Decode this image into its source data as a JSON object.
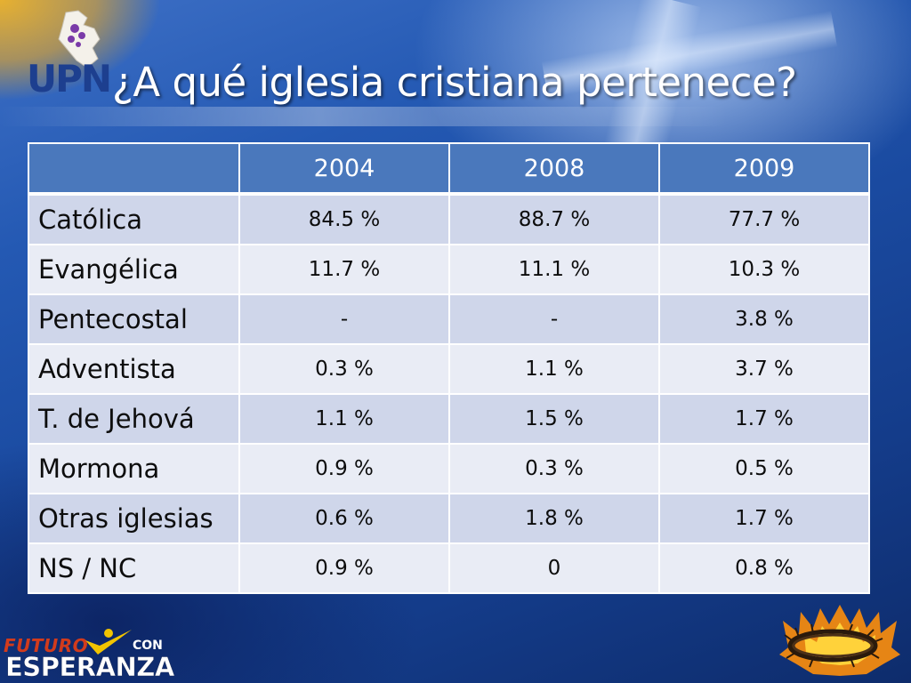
{
  "slide": {
    "title": "¿A qué iglesia cristiana pertenece?"
  },
  "logos": {
    "top_left": {
      "text": "UPN",
      "icon": "peru-map-icon"
    },
    "bottom_left": {
      "line1": "FUTURO",
      "line2": "CON",
      "line3": "ESPERANZA",
      "icon": "check-person-icon"
    },
    "bottom_right": {
      "icon": "crown-of-thorns-flames-icon"
    }
  },
  "table": {
    "corner": "",
    "columns": [
      "2004",
      "2008",
      "2009"
    ],
    "rows": [
      {
        "label": "Católica",
        "values": [
          "84.5 %",
          "88.7 %",
          "77.7 %"
        ]
      },
      {
        "label": "Evangélica",
        "values": [
          "11.7 %",
          "11.1 %",
          "10.3 %"
        ]
      },
      {
        "label": "Pentecostal",
        "values": [
          "-",
          "-",
          "3.8 %"
        ]
      },
      {
        "label": "Adventista",
        "values": [
          "0.3 %",
          "1.1 %",
          "3.7 %"
        ]
      },
      {
        "label": "T. de Jehová",
        "values": [
          "1.1 %",
          "1.5 %",
          "1.7 %"
        ]
      },
      {
        "label": "Mormona",
        "values": [
          "0.9 %",
          "0.3 %",
          "0.5 %"
        ]
      },
      {
        "label": "Otras iglesias",
        "values": [
          "0.6 %",
          "1.8 %",
          "1.7 %"
        ]
      },
      {
        "label": "NS / NC",
        "values": [
          "0.9 %",
          "0",
          "0.8 %"
        ]
      }
    ]
  },
  "colors": {
    "header_fill": "#4a78bc",
    "row_odd": "#cfd6ea",
    "row_even": "#e9ecf5",
    "background": "#1a4aa0"
  }
}
